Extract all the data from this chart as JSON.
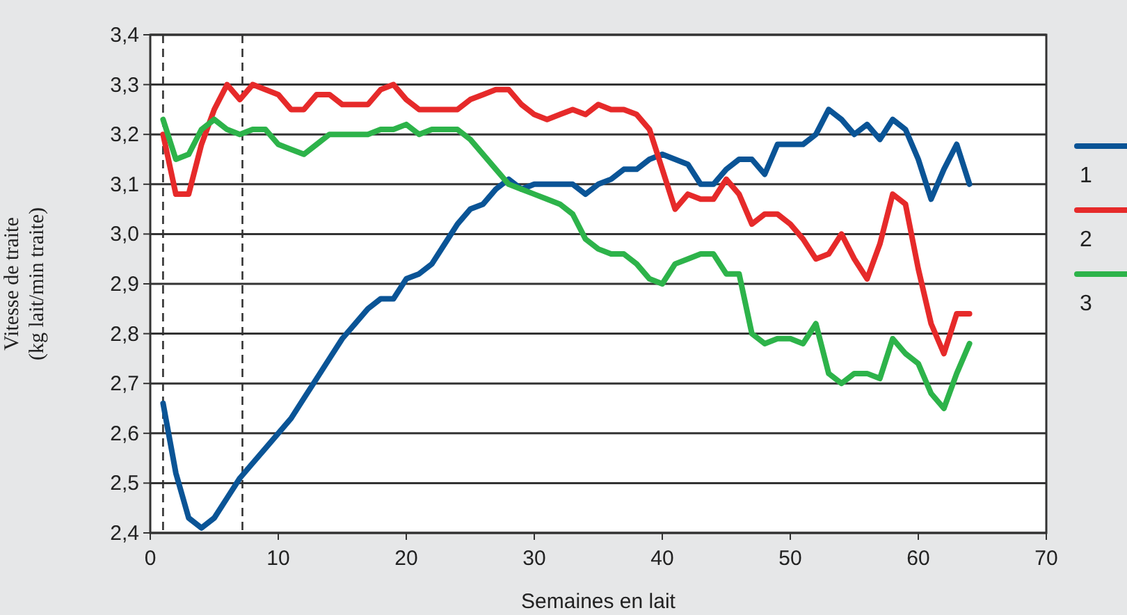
{
  "chart_data": {
    "type": "line",
    "xlabel": "Semaines en lait",
    "ylabel": "Vitesse de traite\n(kg lait/min traite)",
    "xlim": [
      0,
      70
    ],
    "xticks": [
      0,
      10,
      20,
      30,
      40,
      50,
      60,
      70
    ],
    "ylim": [
      2.4,
      3.4
    ],
    "yticks": [
      {
        "value": 2.4,
        "label": "2,4"
      },
      {
        "value": 2.5,
        "label": "2,5"
      },
      {
        "value": 2.6,
        "label": "2,6"
      },
      {
        "value": 2.7,
        "label": "2,7"
      },
      {
        "value": 2.8,
        "label": "2,8"
      },
      {
        "value": 2.9,
        "label": "2,9"
      },
      {
        "value": 3.0,
        "label": "3,0"
      },
      {
        "value": 3.1,
        "label": "3,1"
      },
      {
        "value": 3.2,
        "label": "3,2"
      },
      {
        "value": 3.3,
        "label": "3,3"
      },
      {
        "value": 3.4,
        "label": "3,4"
      }
    ],
    "grid": "y",
    "legend": "right",
    "line_style": "solid",
    "marker": "none",
    "x": [
      1,
      2,
      3,
      4,
      5,
      6,
      7,
      8,
      9,
      10,
      11,
      12,
      13,
      14,
      15,
      16,
      17,
      18,
      19,
      20,
      21,
      22,
      23,
      24,
      25,
      26,
      27,
      28,
      29,
      30,
      31,
      32,
      33,
      34,
      35,
      36,
      37,
      38,
      39,
      40,
      41,
      42,
      43,
      44,
      45,
      46,
      47,
      48,
      49,
      50,
      51,
      52,
      53,
      54,
      55,
      56,
      57,
      58,
      59,
      60,
      61,
      62,
      63,
      64
    ],
    "series": [
      {
        "name": "1",
        "color": "#0a5496",
        "values": [
          2.66,
          2.52,
          2.43,
          2.41,
          2.43,
          2.47,
          2.51,
          2.54,
          2.57,
          2.6,
          2.63,
          2.67,
          2.71,
          2.75,
          2.79,
          2.82,
          2.85,
          2.87,
          2.87,
          2.91,
          2.92,
          2.94,
          2.98,
          3.02,
          3.05,
          3.06,
          3.09,
          3.11,
          3.09,
          3.1,
          3.1,
          3.1,
          3.1,
          3.08,
          3.1,
          3.11,
          3.13,
          3.13,
          3.15,
          3.16,
          3.15,
          3.14,
          3.1,
          3.1,
          3.13,
          3.15,
          3.15,
          3.12,
          3.18,
          3.18,
          3.18,
          3.2,
          3.25,
          3.23,
          3.2,
          3.22,
          3.19,
          3.23,
          3.21,
          3.15,
          3.07,
          3.13,
          3.18,
          3.1
        ]
      },
      {
        "name": "2",
        "color": "#e62a2a",
        "values": [
          3.2,
          3.08,
          3.08,
          3.18,
          3.25,
          3.3,
          3.27,
          3.3,
          3.29,
          3.28,
          3.25,
          3.25,
          3.28,
          3.28,
          3.26,
          3.26,
          3.26,
          3.29,
          3.3,
          3.27,
          3.25,
          3.25,
          3.25,
          3.25,
          3.27,
          3.28,
          3.29,
          3.29,
          3.26,
          3.24,
          3.23,
          3.24,
          3.25,
          3.24,
          3.26,
          3.25,
          3.25,
          3.24,
          3.21,
          3.13,
          3.05,
          3.08,
          3.07,
          3.07,
          3.11,
          3.08,
          3.02,
          3.04,
          3.04,
          3.02,
          2.99,
          2.95,
          2.96,
          3.0,
          2.95,
          2.91,
          2.98,
          3.08,
          3.06,
          2.93,
          2.82,
          2.76,
          2.84,
          2.84
        ]
      },
      {
        "name": "3",
        "color": "#2db34a",
        "values": [
          3.23,
          3.15,
          3.16,
          3.21,
          3.23,
          3.21,
          3.2,
          3.21,
          3.21,
          3.18,
          3.17,
          3.16,
          3.18,
          3.2,
          3.2,
          3.2,
          3.2,
          3.21,
          3.21,
          3.22,
          3.2,
          3.21,
          3.21,
          3.21,
          3.19,
          3.16,
          3.13,
          3.1,
          3.09,
          3.08,
          3.07,
          3.06,
          3.04,
          2.99,
          2.97,
          2.96,
          2.96,
          2.94,
          2.91,
          2.9,
          2.94,
          2.95,
          2.96,
          2.96,
          2.92,
          2.92,
          2.8,
          2.78,
          2.79,
          2.79,
          2.78,
          2.82,
          2.72,
          2.7,
          2.72,
          2.72,
          2.71,
          2.79,
          2.76,
          2.74,
          2.68,
          2.65,
          2.72,
          2.78
        ]
      }
    ],
    "ref_lines": [
      {
        "axis": "x",
        "value": 1,
        "line_style": "dashed",
        "color": "#333333"
      },
      {
        "axis": "x",
        "value": 7.2,
        "line_style": "dashed",
        "color": "#333333"
      }
    ]
  }
}
